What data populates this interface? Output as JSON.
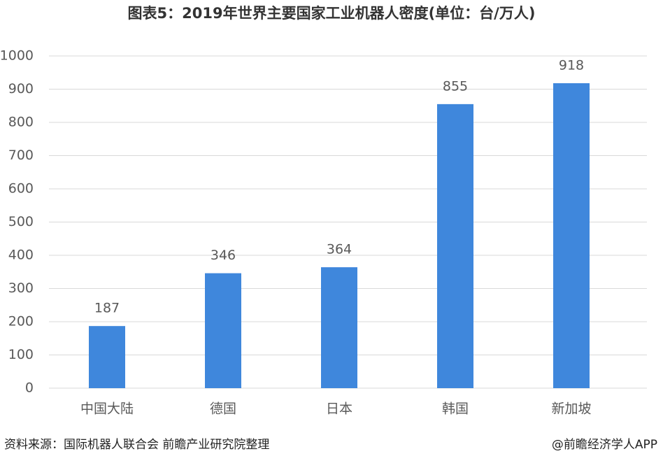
{
  "chart_data": {
    "type": "bar",
    "title": "图表5：2019年世界主要国家工业机器人密度(单位：台/万人)",
    "categories": [
      "中国大陆",
      "德国",
      "日本",
      "韩国",
      "新加坡"
    ],
    "values": [
      187,
      346,
      364,
      855,
      918
    ],
    "color": "#3f87dc",
    "ylim": [
      0,
      1000
    ],
    "yticks": [
      0,
      100,
      200,
      300,
      400,
      500,
      600,
      700,
      800,
      900,
      1000
    ],
    "grid": true,
    "source": "资料来源：国际机器人联合会 前瞻产业研究院整理",
    "credit": "@前瞻经济学人APP"
  }
}
